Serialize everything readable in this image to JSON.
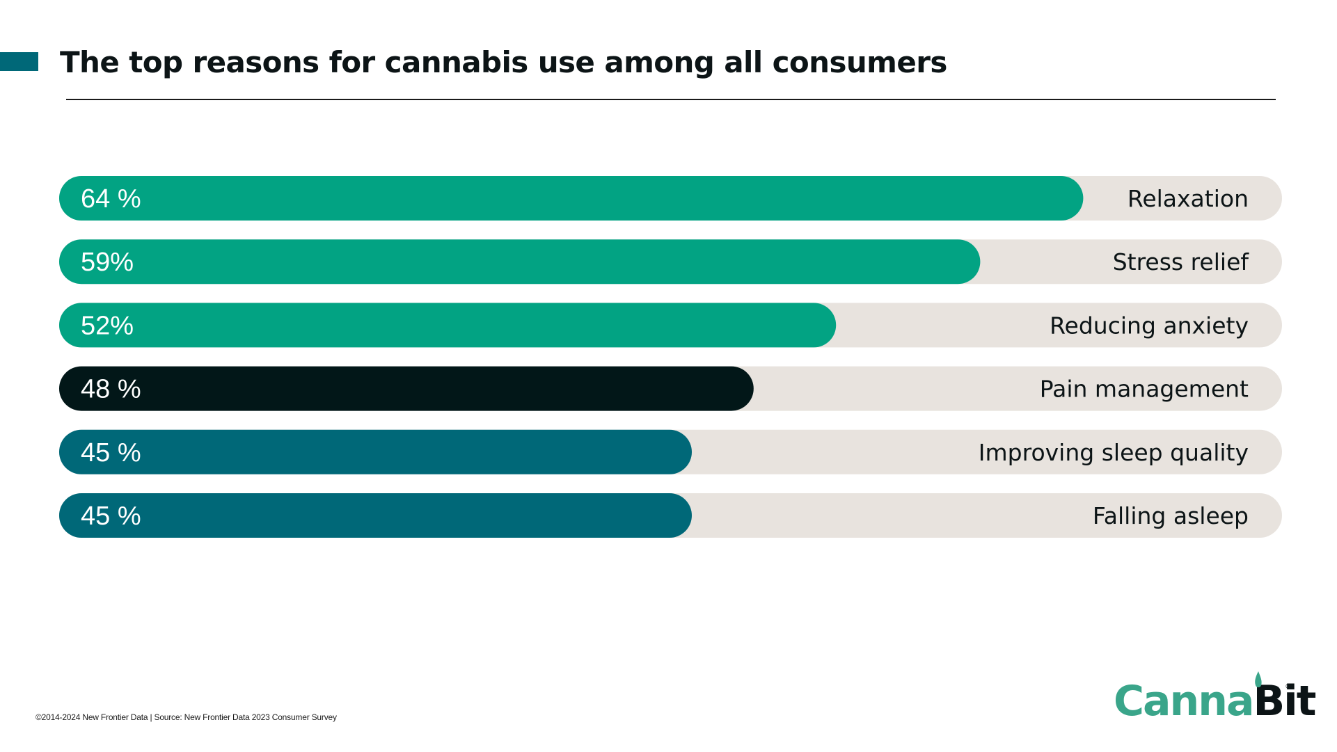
{
  "header": {
    "title": "The top reasons for cannabis use among all consumers"
  },
  "colors": {
    "accent": "#006878",
    "green": "#02a383",
    "dark": "#021718",
    "teal": "#006878",
    "track": "#e8e3de"
  },
  "chart_data": {
    "type": "bar",
    "orientation": "horizontal",
    "title": "The top reasons for cannabis use among all consumers",
    "xlabel": "",
    "ylabel": "",
    "unit": "%",
    "grid": false,
    "legend": "none",
    "categories": [
      "Relaxation",
      "Stress relief",
      "Reducing anxiety",
      "Pain management",
      "Improving sleep quality",
      "Falling asleep"
    ],
    "values": [
      64,
      59,
      52,
      48,
      45,
      45
    ],
    "value_labels": [
      "64 %",
      "59%",
      "52%",
      "48 %",
      "45 %",
      "45 %"
    ],
    "bar_colors": [
      "#02a383",
      "#02a383",
      "#02a383",
      "#021718",
      "#006878",
      "#006878"
    ]
  },
  "footer": {
    "source": "©2014-2024  New Frontier Data | Source: New Frontier Data 2023 Consumer Survey"
  },
  "logo": {
    "part1": "Canna",
    "part2": "Bit",
    "registered": "®"
  }
}
